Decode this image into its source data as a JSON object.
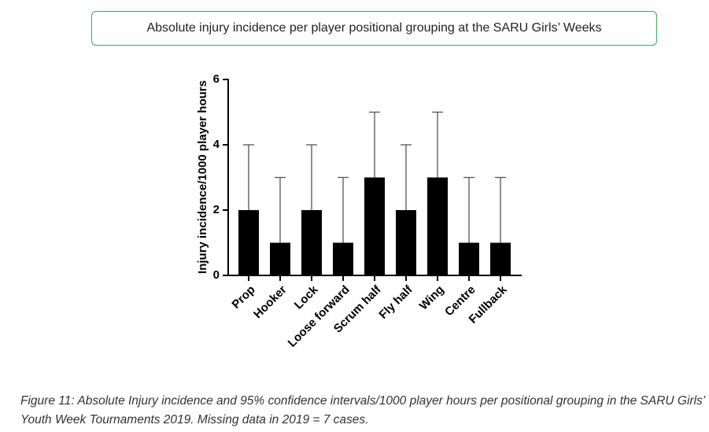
{
  "chart_data": {
    "type": "bar",
    "title": "Absolute injury incidence per player positional grouping at the SARU Girls’ Weeks",
    "ylabel": "Injury incidence/1000 player hours",
    "categories": [
      "Prop",
      "Hooker",
      "Lock",
      "Loose forward",
      "Scrum half",
      "Fly half",
      "Wing",
      "Centre",
      "Fullback"
    ],
    "values": [
      2,
      1,
      2,
      1,
      3,
      2,
      3,
      1,
      1
    ],
    "errors": [
      2,
      2,
      2,
      2,
      2,
      2,
      2,
      2,
      2
    ],
    "color": "#000000",
    "ylim": [
      0,
      6
    ],
    "yticks": [
      0,
      2,
      4,
      6
    ],
    "grid": false
  },
  "caption": {
    "label": "Figure 11:",
    "text": "Absolute Injury incidence and 95% confidence intervals/1000 player hours per positional grouping in the SARU Girls’ Youth Week Tournaments 2019. Missing data in 2019 = 7 cases."
  }
}
